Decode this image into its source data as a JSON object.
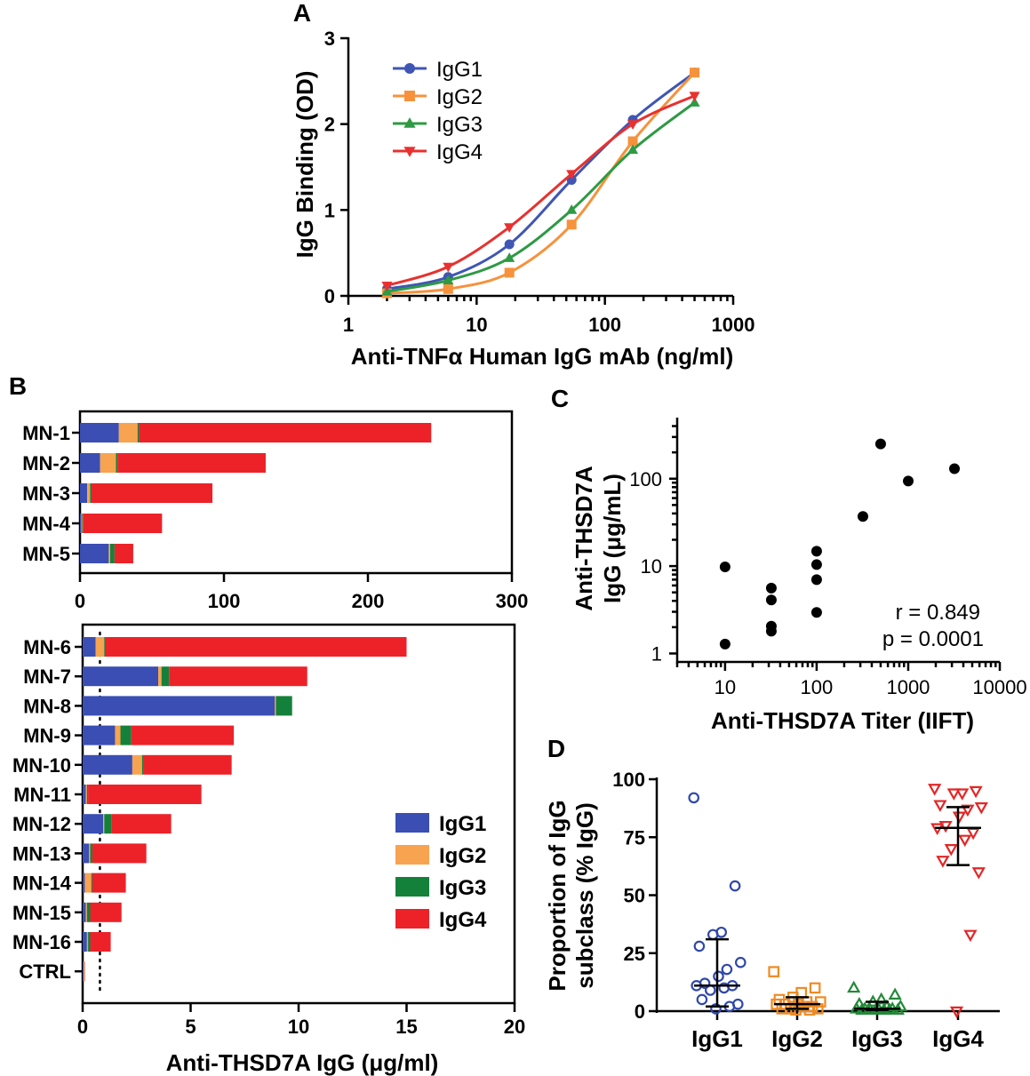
{
  "panels": {
    "A": "A",
    "B": "B",
    "C": "C",
    "D": "D"
  },
  "colors": {
    "IgG1": "#3f56b4",
    "IgG2": "#f6923c",
    "IgG3": "#2e9a44",
    "IgG4": "#e8312f",
    "IgG1D": "#3048a8",
    "IgG2D": "#f08a22",
    "IgG3D": "#238a38",
    "IgG4D": "#e32626",
    "bB_IgG1": "#3a4eb3",
    "bB_IgG2": "#f7a350",
    "bB_IgG3": "#14813a",
    "bB_IgG4": "#ed2229"
  },
  "chart_data": [
    {
      "id": "A",
      "type": "line",
      "xscale": "log",
      "xlim": [
        1,
        1000
      ],
      "ylim": [
        0,
        3
      ],
      "xlabel": "Anti-TNFα Human IgG mAb (ng/ml)",
      "ylabel": "IgG Binding (OD)",
      "xticks": [
        "1",
        "10",
        "100",
        "1000"
      ],
      "yticks": [
        "0",
        "1",
        "2",
        "3"
      ],
      "x": [
        2,
        6,
        18,
        55,
        165,
        500
      ],
      "series": [
        {
          "name": "IgG1",
          "marker": "circle",
          "values": [
            0.08,
            0.22,
            0.6,
            1.35,
            2.05,
            2.6
          ]
        },
        {
          "name": "IgG2",
          "marker": "square",
          "values": [
            0.03,
            0.08,
            0.27,
            0.83,
            1.8,
            2.6
          ]
        },
        {
          "name": "IgG3",
          "marker": "triangle-up",
          "values": [
            0.05,
            0.18,
            0.44,
            1.0,
            1.7,
            2.25
          ]
        },
        {
          "name": "IgG4",
          "marker": "triangle-down",
          "values": [
            0.12,
            0.34,
            0.8,
            1.42,
            2.0,
            2.33
          ]
        }
      ],
      "legend": "top-left"
    },
    {
      "id": "B-top",
      "type": "bar",
      "orientation": "horizontal",
      "stacked": true,
      "categories": [
        "MN-1",
        "MN-2",
        "MN-3",
        "MN-4",
        "MN-5"
      ],
      "xlim": [
        0,
        300
      ],
      "xticks": [
        "0",
        "100",
        "200",
        "300"
      ],
      "series": [
        {
          "name": "IgG1",
          "values": [
            27,
            14,
            5,
            1,
            20
          ]
        },
        {
          "name": "IgG2",
          "values": [
            13,
            11,
            2,
            0.5,
            1
          ]
        },
        {
          "name": "IgG3",
          "values": [
            1,
            1,
            1,
            0.5,
            3
          ]
        },
        {
          "name": "IgG4",
          "values": [
            203,
            103,
            84,
            55,
            13
          ]
        }
      ]
    },
    {
      "id": "B-bottom",
      "type": "bar",
      "orientation": "horizontal",
      "stacked": true,
      "categories": [
        "MN-6",
        "MN-7",
        "MN-8",
        "MN-9",
        "MN-10",
        "MN-11",
        "MN-12",
        "MN-13",
        "MN-14",
        "MN-15",
        "MN-16",
        "CTRL"
      ],
      "xlim": [
        0,
        20
      ],
      "xticks": [
        "0",
        "5",
        "10",
        "15",
        "20"
      ],
      "xlabel": "Anti-THSD7A IgG (μg/ml)",
      "cutoff": 0.8,
      "series": [
        {
          "name": "IgG1",
          "values": [
            0.6,
            3.5,
            8.9,
            1.5,
            2.3,
            0.15,
            0.95,
            0.3,
            0.1,
            0.15,
            0.2,
            0.04
          ]
        },
        {
          "name": "IgG2",
          "values": [
            0.4,
            0.15,
            0.05,
            0.25,
            0.45,
            0.05,
            0.05,
            0.05,
            0.3,
            0.05,
            0.05,
            0.03
          ]
        },
        {
          "name": "IgG3",
          "values": [
            0.05,
            0.35,
            0.75,
            0.5,
            0.05,
            0.05,
            0.35,
            0.1,
            0.05,
            0.15,
            0.1,
            0.01
          ]
        },
        {
          "name": "IgG4",
          "values": [
            13.95,
            6.4,
            0,
            4.75,
            4.1,
            5.25,
            2.75,
            2.5,
            1.55,
            1.45,
            0.95,
            0.02
          ]
        }
      ],
      "legend": "bottom-right"
    },
    {
      "id": "C",
      "type": "scatter",
      "xscale": "log",
      "yscale": "log",
      "xlim": [
        3,
        10000
      ],
      "ylim": [
        0.8,
        500
      ],
      "xticks": [
        "10",
        "100",
        "1000",
        "10000"
      ],
      "yticks": [
        "1",
        "10",
        "100"
      ],
      "xlabel": "Anti-THSD7A Titer (IIFT)",
      "ylabel": "Anti-THSD7A IgG (μg/mL)",
      "points": [
        [
          10,
          9.8
        ],
        [
          10,
          1.28
        ],
        [
          32,
          5.6
        ],
        [
          32,
          4.1
        ],
        [
          32,
          2.05
        ],
        [
          32,
          1.8
        ],
        [
          100,
          14.8
        ],
        [
          100,
          10.4
        ],
        [
          100,
          7.0
        ],
        [
          100,
          2.95
        ],
        [
          320,
          37
        ],
        [
          500,
          250
        ],
        [
          1000,
          94
        ],
        [
          3200,
          130
        ]
      ],
      "annotations": [
        "r = 0.849",
        "p = 0.0001"
      ]
    },
    {
      "id": "D",
      "type": "scatter",
      "categories": [
        "IgG1",
        "IgG2",
        "IgG3",
        "IgG4"
      ],
      "ylim": [
        0,
        100
      ],
      "yticks": [
        "0",
        "25",
        "50",
        "75",
        "100"
      ],
      "ylabel": "Proportion of IgG subclass (% IgG)",
      "groups": [
        {
          "name": "IgG1",
          "marker": "open-circle",
          "median": 11,
          "iqr": [
            2,
            31
          ],
          "values": [
            92,
            54,
            34,
            33,
            28,
            21,
            18,
            15,
            12,
            11,
            11,
            10,
            9,
            5,
            3,
            2,
            1
          ]
        },
        {
          "name": "IgG2",
          "marker": "open-square",
          "median": 3,
          "iqr": [
            1,
            6
          ],
          "values": [
            17,
            10,
            8,
            6,
            5,
            4,
            4,
            3,
            3,
            3,
            2,
            2,
            1,
            1,
            1,
            0.5,
            0.5
          ]
        },
        {
          "name": "IgG3",
          "marker": "open-triangle-up",
          "median": 1,
          "iqr": [
            0.5,
            4
          ],
          "values": [
            10,
            7,
            5,
            4,
            3,
            2,
            2,
            1,
            1,
            1,
            1,
            0.5,
            0.5,
            0.5,
            0.5,
            0.5,
            0.5
          ]
        },
        {
          "name": "IgG4",
          "marker": "open-triangle-down",
          "median": 79,
          "iqr": [
            63,
            88
          ],
          "values": [
            96,
            95,
            94,
            94,
            89,
            88,
            87,
            84,
            80,
            79,
            77,
            74,
            70,
            65,
            60,
            33,
            0
          ]
        }
      ]
    }
  ]
}
